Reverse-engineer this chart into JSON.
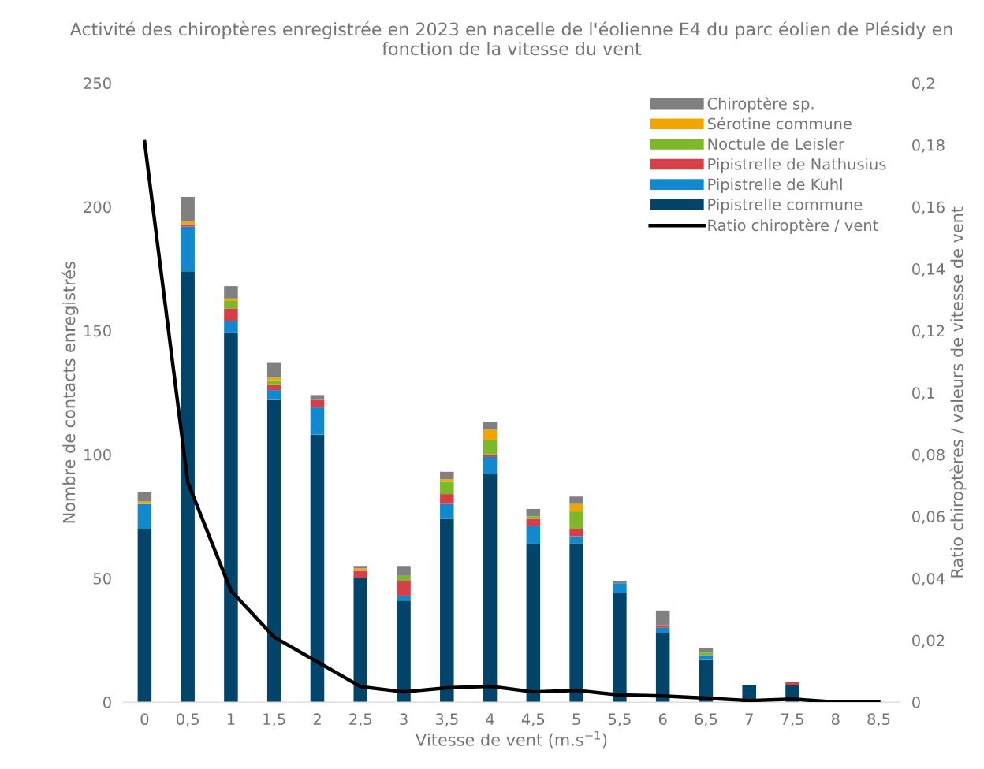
{
  "chart_data": {
    "type": "bar",
    "stacked": true,
    "title": "Activité des chiroptères enregistrée en 2023 en nacelle de l'éolienne E4 du parc éolien de Plésidy en fonction de la vitesse du vent",
    "xlabel": "Vitesse de vent (m.s$^{−1}$)",
    "ylabel": "Nombre de contacts enregistrés",
    "y2label": "Ratio chiroptères / valeurs de vitesse de vent",
    "categories": [
      "0",
      "0,5",
      "1",
      "1,5",
      "2",
      "2,5",
      "3",
      "3,5",
      "4",
      "4,5",
      "5",
      "5,5",
      "6",
      "6,5",
      "7",
      "7,5",
      "8",
      "8,5"
    ],
    "series": [
      {
        "name": "Pipistrelle commune",
        "color": "#02446a",
        "values": [
          70,
          174,
          149,
          122,
          108,
          50,
          41,
          74,
          92,
          64,
          64,
          44,
          28,
          17,
          7,
          7,
          0,
          0
        ]
      },
      {
        "name": "Pipistrelle de Kuhl",
        "color": "#1289cf",
        "values": [
          10,
          18,
          5,
          4,
          11,
          0,
          2,
          6,
          7,
          7,
          3,
          4,
          2,
          2,
          0,
          0,
          0,
          0
        ]
      },
      {
        "name": "Pipistrelle de Nathusius",
        "color": "#d63f47",
        "values": [
          0,
          1,
          5,
          2,
          3,
          3,
          6,
          4,
          1,
          3,
          3,
          0,
          1,
          0,
          0,
          1,
          0,
          0
        ]
      },
      {
        "name": "Noctule de Leisler",
        "color": "#7db828",
        "values": [
          0,
          0,
          3,
          2,
          0,
          0,
          2,
          5,
          6,
          1,
          7,
          0,
          0,
          1,
          0,
          0,
          0,
          0
        ]
      },
      {
        "name": "Sérotine commune",
        "color": "#f0a500",
        "values": [
          1,
          1,
          1,
          1,
          0,
          1,
          0,
          1,
          4,
          0,
          3,
          0,
          0,
          0,
          0,
          0,
          0,
          0
        ]
      },
      {
        "name": "Chiroptère sp.",
        "color": "#808080",
        "values": [
          4,
          10,
          5,
          6,
          2,
          1,
          4,
          3,
          3,
          3,
          3,
          1,
          6,
          2,
          0,
          0,
          0,
          null
        ]
      },
      {
        "name": "Ratio chiroptère / vent",
        "type": "line",
        "axis": "y2",
        "color": "#000000",
        "values": [
          0.181,
          0.071,
          0.036,
          0.021,
          0.013,
          0.005,
          0.0033,
          0.0046,
          0.0051,
          0.0033,
          0.0038,
          0.0023,
          0.002,
          0.0013,
          0.0005,
          0.001,
          0,
          0
        ]
      }
    ],
    "ylim": [
      0,
      250
    ],
    "yticks": [
      0,
      50,
      100,
      150,
      200,
      250
    ],
    "y2lim": [
      0,
      0.2
    ],
    "y2ticks": [
      0,
      {
        "value": 0.02,
        "label": "0,02"
      },
      {
        "value": 0.04,
        "label": "0,04"
      },
      {
        "value": 0.06,
        "label": "0,06"
      },
      {
        "value": 0.08,
        "label": "0,08"
      },
      {
        "value": 0.1,
        "label": "0,1"
      },
      {
        "value": 0.12,
        "label": "0,12"
      },
      {
        "value": 0.14,
        "label": "0,14"
      },
      {
        "value": 0.16,
        "label": "0,16"
      },
      {
        "value": 0.18,
        "label": "0,18"
      },
      {
        "value": 0.2,
        "label": "0,2"
      }
    ],
    "grid": false,
    "legend": "top right"
  }
}
